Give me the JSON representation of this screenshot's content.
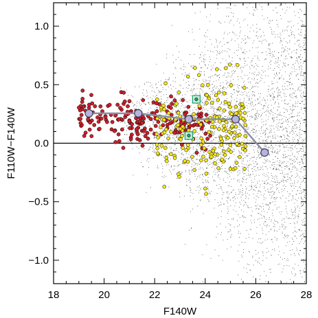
{
  "chart_data": {
    "type": "scatter",
    "xlabel": "F140W",
    "ylabel": "F110W−F140W",
    "xlim": [
      18,
      28
    ],
    "ylim": [
      -1.2,
      1.2
    ],
    "x_ticks": [
      18,
      20,
      22,
      24,
      26,
      28
    ],
    "y_ticks": [
      -1.0,
      -0.5,
      0.0,
      0.5,
      1.0
    ],
    "x_tick_labels": [
      "18",
      "20",
      "22",
      "24",
      "26",
      "28"
    ],
    "y_tick_labels": [
      "−1.0",
      "−0.5",
      "0.0",
      "0.5",
      "1.0"
    ],
    "reference_line_y": 0.0,
    "colors": {
      "background_points": "#555555",
      "red_points": "#cc1f2a",
      "yellow_points": "#f4e619",
      "median_line": "#8a8fa8",
      "median_markers": "#b7b3de",
      "highlight_box": "#1aa36a"
    },
    "series": [
      {
        "name": "",
        "style": "median",
        "x": [
          19.4,
          21.35,
          23.35,
          25.2,
          26.35
        ],
        "y": [
          0.255,
          0.255,
          0.205,
          0.205,
          -0.08
        ]
      },
      {
        "name": "",
        "style": "highlight",
        "x": [
          23.65,
          23.35
        ],
        "y": [
          0.375,
          0.065
        ]
      }
    ]
  }
}
